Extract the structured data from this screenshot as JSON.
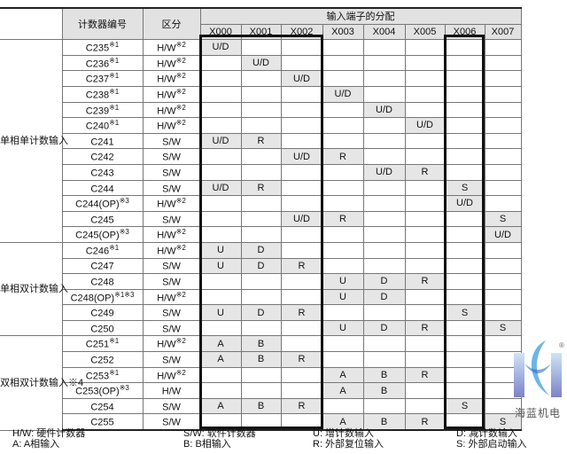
{
  "header": {
    "counter_no": "计数器编号",
    "type": "区分",
    "input_assign": "输入端子的分配",
    "inputs": [
      "X000",
      "X001",
      "X002",
      "X003",
      "X004",
      "X005",
      "X006",
      "X007"
    ]
  },
  "groups": [
    {
      "label": "单相单计数输入",
      "rows": [
        {
          "id": "C235",
          "sup": "※1",
          "type": "H/W",
          "tsup": "※2",
          "cells": [
            "U/D",
            "",
            "",
            "",
            "",
            "",
            "",
            ""
          ]
        },
        {
          "id": "C236",
          "sup": "※1",
          "type": "H/W",
          "tsup": "※2",
          "cells": [
            "",
            "U/D",
            "",
            "",
            "",
            "",
            "",
            ""
          ]
        },
        {
          "id": "C237",
          "sup": "※1",
          "type": "H/W",
          "tsup": "※2",
          "cells": [
            "",
            "",
            "U/D",
            "",
            "",
            "",
            "",
            ""
          ]
        },
        {
          "id": "C238",
          "sup": "※1",
          "type": "H/W",
          "tsup": "※2",
          "cells": [
            "",
            "",
            "",
            "U/D",
            "",
            "",
            "",
            ""
          ]
        },
        {
          "id": "C239",
          "sup": "※1",
          "type": "H/W",
          "tsup": "※2",
          "cells": [
            "",
            "",
            "",
            "",
            "U/D",
            "",
            "",
            ""
          ]
        },
        {
          "id": "C240",
          "sup": "※1",
          "type": "H/W",
          "tsup": "※2",
          "cells": [
            "",
            "",
            "",
            "",
            "",
            "U/D",
            "",
            ""
          ]
        },
        {
          "id": "C241",
          "sup": "",
          "type": "S/W",
          "tsup": "",
          "cells": [
            "U/D",
            "R",
            "",
            "",
            "",
            "",
            "",
            ""
          ]
        },
        {
          "id": "C242",
          "sup": "",
          "type": "S/W",
          "tsup": "",
          "cells": [
            "",
            "",
            "U/D",
            "R",
            "",
            "",
            "",
            ""
          ]
        },
        {
          "id": "C243",
          "sup": "",
          "type": "S/W",
          "tsup": "",
          "cells": [
            "",
            "",
            "",
            "",
            "U/D",
            "R",
            "",
            ""
          ]
        },
        {
          "id": "C244",
          "sup": "",
          "type": "S/W",
          "tsup": "",
          "cells": [
            "U/D",
            "R",
            "",
            "",
            "",
            "",
            "S",
            ""
          ]
        },
        {
          "id": "C244(OP)",
          "sup": "※3",
          "type": "H/W",
          "tsup": "※2",
          "cells": [
            "",
            "",
            "",
            "",
            "",
            "",
            "U/D",
            ""
          ]
        },
        {
          "id": "C245",
          "sup": "",
          "type": "S/W",
          "tsup": "",
          "cells": [
            "",
            "",
            "U/D",
            "R",
            "",
            "",
            "",
            "S"
          ]
        },
        {
          "id": "C245(OP)",
          "sup": "※3",
          "type": "H/W",
          "tsup": "※2",
          "cells": [
            "",
            "",
            "",
            "",
            "",
            "",
            "",
            "U/D"
          ]
        }
      ]
    },
    {
      "label": "单相双计数输入",
      "rows": [
        {
          "id": "C246",
          "sup": "※1",
          "type": "H/W",
          "tsup": "※2",
          "cells": [
            "U",
            "D",
            "",
            "",
            "",
            "",
            "",
            ""
          ]
        },
        {
          "id": "C247",
          "sup": "",
          "type": "S/W",
          "tsup": "",
          "cells": [
            "U",
            "D",
            "R",
            "",
            "",
            "",
            "",
            ""
          ]
        },
        {
          "id": "C248",
          "sup": "",
          "type": "S/W",
          "tsup": "",
          "cells": [
            "",
            "",
            "",
            "U",
            "D",
            "R",
            "",
            ""
          ]
        },
        {
          "id": "C248(OP)",
          "sup": "※1※3",
          "type": "H/W",
          "tsup": "※2",
          "cells": [
            "",
            "",
            "",
            "U",
            "D",
            "",
            "",
            ""
          ]
        },
        {
          "id": "C249",
          "sup": "",
          "type": "S/W",
          "tsup": "",
          "cells": [
            "U",
            "D",
            "R",
            "",
            "",
            "",
            "S",
            ""
          ]
        },
        {
          "id": "C250",
          "sup": "",
          "type": "S/W",
          "tsup": "",
          "cells": [
            "",
            "",
            "",
            "U",
            "D",
            "R",
            "",
            "S"
          ]
        }
      ]
    },
    {
      "label": "双相双计数输入※4",
      "rows": [
        {
          "id": "C251",
          "sup": "※1",
          "type": "H/W",
          "tsup": "※2",
          "cells": [
            "A",
            "B",
            "",
            "",
            "",
            "",
            "",
            ""
          ]
        },
        {
          "id": "C252",
          "sup": "",
          "type": "S/W",
          "tsup": "",
          "cells": [
            "A",
            "B",
            "R",
            "",
            "",
            "",
            "",
            ""
          ]
        },
        {
          "id": "C253",
          "sup": "※1",
          "type": "H/W",
          "tsup": "※2",
          "cells": [
            "",
            "",
            "",
            "A",
            "B",
            "R",
            "",
            ""
          ]
        },
        {
          "id": "C253(OP)",
          "sup": "※3",
          "type": "H/W",
          "tsup": "",
          "cells": [
            "",
            "",
            "",
            "A",
            "B",
            "",
            "",
            ""
          ]
        },
        {
          "id": "C254",
          "sup": "",
          "type": "S/W",
          "tsup": "",
          "cells": [
            "A",
            "B",
            "R",
            "",
            "",
            "",
            "S",
            ""
          ]
        },
        {
          "id": "C255",
          "sup": "",
          "type": "S/W",
          "tsup": "",
          "cells": [
            "",
            "",
            "",
            "A",
            "B",
            "R",
            "",
            "S"
          ]
        }
      ]
    }
  ],
  "legend": [
    "H/W:  硬件计数器",
    "S/W:  软件计数器",
    "U:  增计数输入",
    "D:  减计数输入",
    "A:  A相输入",
    "B:  B相输入",
    "R:  外部复位输入",
    "S:  外部启动输入"
  ],
  "logo": {
    "text": "海蓝机电",
    "mark": "®"
  },
  "colors": {
    "cell_fill": "#e6e6e6",
    "header_fill": "#e2e2e2"
  }
}
